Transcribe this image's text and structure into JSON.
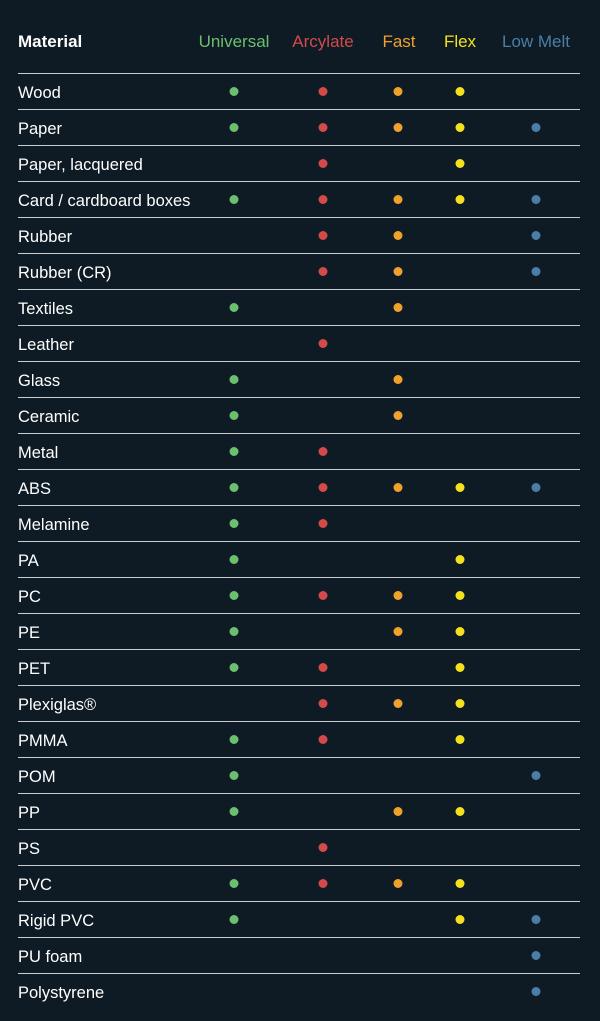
{
  "header": {
    "material_label": "Material",
    "columns": [
      {
        "key": "universal",
        "label": "Universal",
        "color": "#6bbf6e"
      },
      {
        "key": "arcylate",
        "label": "Arcylate",
        "color": "#d24a4a"
      },
      {
        "key": "fast",
        "label": "Fast",
        "color": "#f0a12c"
      },
      {
        "key": "flex",
        "label": "Flex",
        "color": "#f4e21c"
      },
      {
        "key": "lowmelt",
        "label": "Low Melt",
        "color": "#4a7ea8"
      }
    ]
  },
  "rows": [
    {
      "material": "Wood",
      "universal": true,
      "arcylate": true,
      "fast": true,
      "flex": true,
      "lowmelt": false
    },
    {
      "material": "Paper",
      "universal": true,
      "arcylate": true,
      "fast": true,
      "flex": true,
      "lowmelt": true
    },
    {
      "material": "Paper, lacquered",
      "universal": false,
      "arcylate": true,
      "fast": false,
      "flex": true,
      "lowmelt": false
    },
    {
      "material": "Card / cardboard boxes",
      "universal": true,
      "arcylate": true,
      "fast": true,
      "flex": true,
      "lowmelt": true
    },
    {
      "material": "Rubber",
      "universal": false,
      "arcylate": true,
      "fast": true,
      "flex": false,
      "lowmelt": true
    },
    {
      "material": "Rubber (CR)",
      "universal": false,
      "arcylate": true,
      "fast": true,
      "flex": false,
      "lowmelt": true
    },
    {
      "material": "Textiles",
      "universal": true,
      "arcylate": false,
      "fast": true,
      "flex": false,
      "lowmelt": false
    },
    {
      "material": "Leather",
      "universal": false,
      "arcylate": true,
      "fast": false,
      "flex": false,
      "lowmelt": false
    },
    {
      "material": "Glass",
      "universal": true,
      "arcylate": false,
      "fast": true,
      "flex": false,
      "lowmelt": false
    },
    {
      "material": "Ceramic",
      "universal": true,
      "arcylate": false,
      "fast": true,
      "flex": false,
      "lowmelt": false
    },
    {
      "material": "Metal",
      "universal": true,
      "arcylate": true,
      "fast": false,
      "flex": false,
      "lowmelt": false
    },
    {
      "material": "ABS",
      "universal": true,
      "arcylate": true,
      "fast": true,
      "flex": true,
      "lowmelt": true
    },
    {
      "material": "Melamine",
      "universal": true,
      "arcylate": true,
      "fast": false,
      "flex": false,
      "lowmelt": false
    },
    {
      "material": "PA",
      "universal": true,
      "arcylate": false,
      "fast": false,
      "flex": true,
      "lowmelt": false
    },
    {
      "material": "PC",
      "universal": true,
      "arcylate": true,
      "fast": true,
      "flex": true,
      "lowmelt": false
    },
    {
      "material": "PE",
      "universal": true,
      "arcylate": false,
      "fast": true,
      "flex": true,
      "lowmelt": false
    },
    {
      "material": "PET",
      "universal": true,
      "arcylate": true,
      "fast": false,
      "flex": true,
      "lowmelt": false
    },
    {
      "material": "Plexiglas®",
      "universal": false,
      "arcylate": true,
      "fast": true,
      "flex": true,
      "lowmelt": false
    },
    {
      "material": "PMMA",
      "universal": true,
      "arcylate": true,
      "fast": false,
      "flex": true,
      "lowmelt": false
    },
    {
      "material": "POM",
      "universal": true,
      "arcylate": false,
      "fast": false,
      "flex": false,
      "lowmelt": true
    },
    {
      "material": "PP",
      "universal": true,
      "arcylate": false,
      "fast": true,
      "flex": true,
      "lowmelt": false
    },
    {
      "material": "PS",
      "universal": false,
      "arcylate": true,
      "fast": false,
      "flex": false,
      "lowmelt": false
    },
    {
      "material": "PVC",
      "universal": true,
      "arcylate": true,
      "fast": true,
      "flex": true,
      "lowmelt": false
    },
    {
      "material": "Rigid PVC",
      "universal": true,
      "arcylate": false,
      "fast": false,
      "flex": true,
      "lowmelt": true
    },
    {
      "material": "PU foam",
      "universal": false,
      "arcylate": false,
      "fast": false,
      "flex": false,
      "lowmelt": true
    },
    {
      "material": "Polystyrene",
      "universal": false,
      "arcylate": false,
      "fast": false,
      "flex": false,
      "lowmelt": true
    }
  ]
}
